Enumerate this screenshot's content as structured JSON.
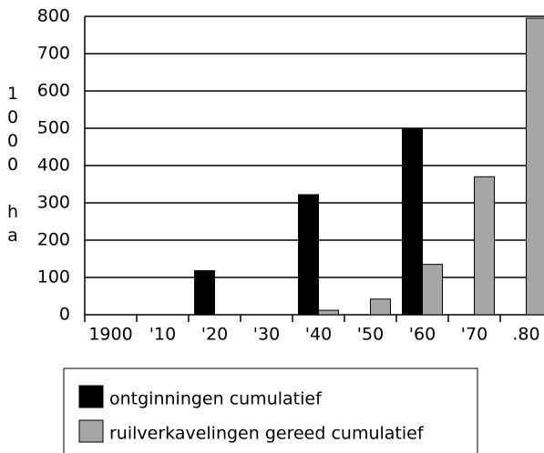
{
  "chart_data": {
    "type": "bar",
    "y_label": "1000 ha",
    "categories": [
      "1900",
      "'10",
      "'20",
      "'30",
      "'40",
      "'50",
      "'60",
      "'70",
      ".80"
    ],
    "series": [
      {
        "name": "ontginningen cumulatief",
        "color": "#000000",
        "values": [
          0,
          0,
          118,
          0,
          322,
          0,
          500,
          0,
          0
        ]
      },
      {
        "name": "ruilverkavelingen gereed cumulatief",
        "color": "#a6a6a6",
        "values": [
          0,
          0,
          0,
          0,
          12,
          42,
          135,
          370,
          795
        ]
      }
    ],
    "ylim": [
      0,
      800
    ],
    "yticks": [
      0,
      100,
      200,
      300,
      400,
      500,
      600,
      700,
      800
    ],
    "grid": true
  }
}
